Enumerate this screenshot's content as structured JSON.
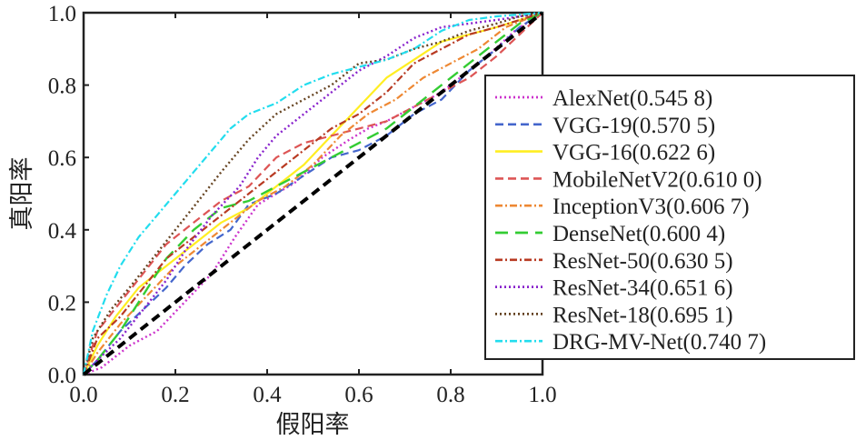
{
  "chart_data": {
    "type": "line",
    "title": "",
    "xlabel": "假阳率",
    "ylabel": "真阳率",
    "xlim": [
      0,
      1
    ],
    "ylim": [
      0,
      1
    ],
    "xticks": [
      "0.0",
      "0.2",
      "0.4",
      "0.6",
      "0.8",
      "1.0"
    ],
    "yticks": [
      "0.0",
      "0.2",
      "0.4",
      "0.6",
      "0.8",
      "1.0"
    ],
    "grid": false,
    "legend_position": "right",
    "reference_line": {
      "name": "random",
      "color": "#000000",
      "style": "dashed",
      "x": [
        0,
        1
      ],
      "y": [
        0,
        1
      ]
    },
    "series": [
      {
        "name": "AlexNet(0.545 8)",
        "color": "#cc33cc",
        "style": "dotted",
        "x": [
          0,
          0.04,
          0.1,
          0.16,
          0.22,
          0.28,
          0.33,
          0.38,
          0.42,
          0.46,
          0.52,
          0.58,
          0.62,
          0.66,
          0.72,
          0.78,
          0.82,
          0.88,
          0.94,
          1.0
        ],
        "y": [
          0,
          0.02,
          0.08,
          0.12,
          0.2,
          0.28,
          0.38,
          0.47,
          0.5,
          0.53,
          0.6,
          0.65,
          0.68,
          0.7,
          0.74,
          0.78,
          0.82,
          0.88,
          0.95,
          1.0
        ]
      },
      {
        "name": "VGG-19(0.570 5)",
        "color": "#4466cc",
        "style": "dashed",
        "x": [
          0,
          0.03,
          0.08,
          0.13,
          0.18,
          0.22,
          0.27,
          0.32,
          0.36,
          0.42,
          0.48,
          0.54,
          0.6,
          0.66,
          0.72,
          0.78,
          0.84,
          0.9,
          0.95,
          1.0
        ],
        "y": [
          0,
          0.04,
          0.12,
          0.18,
          0.24,
          0.3,
          0.36,
          0.4,
          0.47,
          0.5,
          0.55,
          0.6,
          0.62,
          0.66,
          0.72,
          0.76,
          0.84,
          0.9,
          0.96,
          1.0
        ]
      },
      {
        "name": "VGG-16(0.622 6)",
        "color": "#ffee22",
        "style": "solid",
        "x": [
          0,
          0.03,
          0.07,
          0.12,
          0.18,
          0.24,
          0.3,
          0.36,
          0.42,
          0.48,
          0.54,
          0.6,
          0.66,
          0.72,
          0.78,
          0.84,
          0.9,
          0.95,
          1.0
        ],
        "y": [
          0,
          0.08,
          0.16,
          0.24,
          0.3,
          0.36,
          0.42,
          0.46,
          0.52,
          0.58,
          0.66,
          0.74,
          0.82,
          0.87,
          0.92,
          0.94,
          0.96,
          0.98,
          1.0
        ]
      },
      {
        "name": "MobileNetV2(0.610 0)",
        "color": "#dd5555",
        "style": "dashed",
        "x": [
          0,
          0.03,
          0.08,
          0.13,
          0.18,
          0.24,
          0.3,
          0.36,
          0.42,
          0.48,
          0.54,
          0.6,
          0.66,
          0.72,
          0.78,
          0.84,
          0.9,
          0.95,
          1.0
        ],
        "y": [
          0,
          0.12,
          0.2,
          0.28,
          0.36,
          0.42,
          0.48,
          0.52,
          0.6,
          0.64,
          0.66,
          0.68,
          0.7,
          0.74,
          0.78,
          0.82,
          0.88,
          0.94,
          1.0
        ]
      },
      {
        "name": "InceptionV3(0.606 7)",
        "color": "#ee8833",
        "style": "dashdot",
        "x": [
          0,
          0.03,
          0.08,
          0.14,
          0.2,
          0.26,
          0.32,
          0.38,
          0.44,
          0.5,
          0.56,
          0.62,
          0.68,
          0.74,
          0.8,
          0.86,
          0.92,
          1.0
        ],
        "y": [
          0,
          0.06,
          0.14,
          0.22,
          0.3,
          0.36,
          0.42,
          0.48,
          0.52,
          0.58,
          0.66,
          0.72,
          0.76,
          0.82,
          0.86,
          0.9,
          0.96,
          1.0
        ]
      },
      {
        "name": "DenseNet(0.600 4)",
        "color": "#33cc33",
        "style": "longdash",
        "x": [
          0,
          0.03,
          0.08,
          0.13,
          0.18,
          0.24,
          0.3,
          0.36,
          0.42,
          0.48,
          0.54,
          0.6,
          0.66,
          0.72,
          0.78,
          0.84,
          0.9,
          0.95,
          1.0
        ],
        "y": [
          0,
          0.04,
          0.12,
          0.22,
          0.32,
          0.4,
          0.46,
          0.48,
          0.52,
          0.56,
          0.6,
          0.64,
          0.68,
          0.74,
          0.8,
          0.86,
          0.92,
          0.97,
          1.0
        ]
      },
      {
        "name": "ResNet-50(0.630 5)",
        "color": "#b83a22",
        "style": "dashdot",
        "x": [
          0,
          0.03,
          0.08,
          0.13,
          0.18,
          0.24,
          0.3,
          0.36,
          0.42,
          0.48,
          0.54,
          0.6,
          0.66,
          0.72,
          0.78,
          0.84,
          0.9,
          0.95,
          1.0
        ],
        "y": [
          0,
          0.1,
          0.16,
          0.24,
          0.32,
          0.38,
          0.44,
          0.5,
          0.56,
          0.62,
          0.68,
          0.72,
          0.78,
          0.86,
          0.9,
          0.94,
          0.96,
          0.98,
          1.0
        ]
      },
      {
        "name": "ResNet-34(0.651 6)",
        "color": "#8822cc",
        "style": "dotted",
        "x": [
          0,
          0.03,
          0.08,
          0.13,
          0.18,
          0.22,
          0.28,
          0.34,
          0.38,
          0.42,
          0.48,
          0.54,
          0.6,
          0.66,
          0.72,
          0.78,
          0.84,
          0.9,
          0.95,
          1.0
        ],
        "y": [
          0,
          0.04,
          0.1,
          0.18,
          0.26,
          0.34,
          0.44,
          0.52,
          0.6,
          0.66,
          0.72,
          0.78,
          0.84,
          0.88,
          0.93,
          0.96,
          0.97,
          0.98,
          0.99,
          1.0
        ]
      },
      {
        "name": "ResNet-18(0.695 1)",
        "color": "#664422",
        "style": "dotted",
        "x": [
          0,
          0.02,
          0.06,
          0.1,
          0.15,
          0.2,
          0.25,
          0.3,
          0.36,
          0.42,
          0.48,
          0.54,
          0.6,
          0.66,
          0.72,
          0.78,
          0.84,
          0.9,
          0.95,
          1.0
        ],
        "y": [
          0,
          0.1,
          0.18,
          0.24,
          0.32,
          0.4,
          0.48,
          0.56,
          0.65,
          0.72,
          0.76,
          0.8,
          0.86,
          0.87,
          0.9,
          0.92,
          0.95,
          0.97,
          0.99,
          1.0
        ]
      },
      {
        "name": "DRG-MV-Net(0.740 7)",
        "color": "#22ddee",
        "style": "dashdot",
        "x": [
          0,
          0.02,
          0.05,
          0.08,
          0.12,
          0.16,
          0.2,
          0.24,
          0.28,
          0.32,
          0.36,
          0.42,
          0.48,
          0.54,
          0.6,
          0.66,
          0.72,
          0.78,
          0.84,
          0.9,
          1.0
        ],
        "y": [
          0,
          0.12,
          0.22,
          0.3,
          0.38,
          0.44,
          0.5,
          0.56,
          0.62,
          0.68,
          0.72,
          0.75,
          0.8,
          0.83,
          0.85,
          0.87,
          0.9,
          0.95,
          0.98,
          0.99,
          1.0
        ]
      }
    ]
  }
}
